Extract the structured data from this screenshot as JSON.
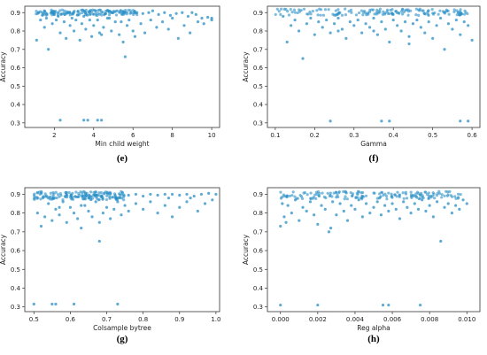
{
  "colors": {
    "point": "#2a8fc6",
    "frame": "#333333",
    "background": "#ffffff"
  },
  "chart_data": [
    {
      "type": "scatter",
      "caption": "(e)",
      "xlabel": "Min child weight",
      "ylabel": "Accuracy",
      "xlim": [
        0.5,
        10.4
      ],
      "ylim": [
        0.275,
        0.935
      ],
      "xticks": [
        2,
        4,
        6,
        8,
        10
      ],
      "yticks": [
        0.3,
        0.4,
        0.5,
        0.6,
        0.7,
        0.8,
        0.9
      ],
      "dense_band": {
        "x_start": 1.0,
        "x_end": 6.3,
        "y_low": 0.885,
        "y_high": 0.915,
        "count": 140
      },
      "points": [
        [
          1.2,
          0.9
        ],
        [
          1.5,
          0.91
        ],
        [
          2.0,
          0.89
        ],
        [
          2.7,
          0.9
        ],
        [
          3.2,
          0.905
        ],
        [
          3.6,
          0.9
        ],
        [
          4.1,
          0.91
        ],
        [
          4.6,
          0.895
        ],
        [
          5.0,
          0.9
        ],
        [
          5.5,
          0.905
        ],
        [
          5.9,
          0.9
        ],
        [
          6.2,
          0.9
        ],
        [
          6.5,
          0.895
        ],
        [
          6.8,
          0.9
        ],
        [
          7.0,
          0.91
        ],
        [
          7.3,
          0.89
        ],
        [
          7.6,
          0.9
        ],
        [
          7.9,
          0.885
        ],
        [
          8.2,
          0.895
        ],
        [
          8.5,
          0.9
        ],
        [
          8.8,
          0.88
        ],
        [
          9.2,
          0.89
        ],
        [
          9.5,
          0.87
        ],
        [
          9.8,
          0.875
        ],
        [
          10.0,
          0.86
        ],
        [
          9.0,
          0.9
        ],
        [
          1.1,
          0.75
        ],
        [
          1.3,
          0.86
        ],
        [
          1.5,
          0.82
        ],
        [
          1.6,
          0.87
        ],
        [
          1.7,
          0.7
        ],
        [
          1.9,
          0.84
        ],
        [
          2.1,
          0.86
        ],
        [
          2.3,
          0.79
        ],
        [
          2.5,
          0.85
        ],
        [
          2.6,
          0.76
        ],
        [
          2.8,
          0.83
        ],
        [
          2.9,
          0.87
        ],
        [
          3.0,
          0.8
        ],
        [
          3.1,
          0.86
        ],
        [
          3.3,
          0.75
        ],
        [
          3.4,
          0.84
        ],
        [
          3.6,
          0.81
        ],
        [
          3.8,
          0.86
        ],
        [
          3.9,
          0.77
        ],
        [
          4.0,
          0.83
        ],
        [
          4.2,
          0.86
        ],
        [
          4.3,
          0.79
        ],
        [
          4.5,
          0.82
        ],
        [
          4.7,
          0.87
        ],
        [
          4.9,
          0.8
        ],
        [
          5.1,
          0.85
        ],
        [
          5.3,
          0.78
        ],
        [
          5.5,
          0.74
        ],
        [
          5.7,
          0.83
        ],
        [
          5.8,
          0.86
        ],
        [
          6.0,
          0.8
        ],
        [
          6.1,
          0.77
        ],
        [
          6.4,
          0.84
        ],
        [
          6.6,
          0.79
        ],
        [
          6.9,
          0.86
        ],
        [
          7.2,
          0.82
        ],
        [
          7.5,
          0.85
        ],
        [
          7.8,
          0.81
        ],
        [
          8.0,
          0.87
        ],
        [
          8.3,
          0.76
        ],
        [
          8.6,
          0.83
        ],
        [
          8.9,
          0.79
        ],
        [
          9.3,
          0.85
        ],
        [
          9.6,
          0.84
        ],
        [
          10.0,
          0.87
        ],
        [
          5.4,
          0.85
        ],
        [
          5.6,
          0.66
        ],
        [
          4.4,
          0.78
        ],
        [
          2.2,
          0.88
        ],
        [
          3.5,
          0.88
        ],
        [
          4.8,
          0.87
        ],
        [
          2.3,
          0.315
        ],
        [
          3.5,
          0.315
        ],
        [
          3.7,
          0.315
        ],
        [
          4.2,
          0.315
        ],
        [
          4.4,
          0.315
        ]
      ]
    },
    {
      "type": "scatter",
      "caption": "(f)",
      "xlabel": "Gamma",
      "ylabel": "Accuracy",
      "xlim": [
        0.08,
        0.62
      ],
      "ylim": [
        0.275,
        0.935
      ],
      "xticks": [
        0.1,
        0.2,
        0.3,
        0.4,
        0.5,
        0.6
      ],
      "yticks": [
        0.3,
        0.4,
        0.5,
        0.6,
        0.7,
        0.8,
        0.9
      ],
      "dense_band": {
        "x_start": 0.1,
        "x_end": 0.6,
        "y_low": 0.885,
        "y_high": 0.92,
        "count": 150
      },
      "points": [
        [
          0.12,
          0.88
        ],
        [
          0.13,
          0.74
        ],
        [
          0.14,
          0.83
        ],
        [
          0.15,
          0.86
        ],
        [
          0.16,
          0.8
        ],
        [
          0.17,
          0.65
        ],
        [
          0.18,
          0.84
        ],
        [
          0.19,
          0.87
        ],
        [
          0.2,
          0.78
        ],
        [
          0.21,
          0.85
        ],
        [
          0.22,
          0.82
        ],
        [
          0.23,
          0.86
        ],
        [
          0.24,
          0.79
        ],
        [
          0.25,
          0.84
        ],
        [
          0.26,
          0.87
        ],
        [
          0.27,
          0.81
        ],
        [
          0.28,
          0.76
        ],
        [
          0.29,
          0.85
        ],
        [
          0.3,
          0.83
        ],
        [
          0.31,
          0.86
        ],
        [
          0.32,
          0.79
        ],
        [
          0.33,
          0.84
        ],
        [
          0.34,
          0.82
        ],
        [
          0.35,
          0.87
        ],
        [
          0.36,
          0.78
        ],
        [
          0.37,
          0.85
        ],
        [
          0.38,
          0.81
        ],
        [
          0.39,
          0.74
        ],
        [
          0.4,
          0.86
        ],
        [
          0.41,
          0.83
        ],
        [
          0.42,
          0.8
        ],
        [
          0.43,
          0.85
        ],
        [
          0.44,
          0.77
        ],
        [
          0.45,
          0.84
        ],
        [
          0.46,
          0.86
        ],
        [
          0.47,
          0.82
        ],
        [
          0.48,
          0.79
        ],
        [
          0.49,
          0.85
        ],
        [
          0.5,
          0.76
        ],
        [
          0.51,
          0.83
        ],
        [
          0.52,
          0.87
        ],
        [
          0.53,
          0.7
        ],
        [
          0.54,
          0.84
        ],
        [
          0.55,
          0.81
        ],
        [
          0.56,
          0.86
        ],
        [
          0.57,
          0.78
        ],
        [
          0.58,
          0.85
        ],
        [
          0.59,
          0.83
        ],
        [
          0.6,
          0.75
        ],
        [
          0.26,
          0.8
        ],
        [
          0.35,
          0.8
        ],
        [
          0.44,
          0.73
        ],
        [
          0.24,
          0.31
        ],
        [
          0.37,
          0.31
        ],
        [
          0.39,
          0.31
        ],
        [
          0.57,
          0.31
        ],
        [
          0.59,
          0.31
        ]
      ]
    },
    {
      "type": "scatter",
      "caption": "(g)",
      "xlabel": "Colsample bytree",
      "ylabel": "Accuracy",
      "xlim": [
        0.475,
        1.01
      ],
      "ylim": [
        0.275,
        0.935
      ],
      "xticks": [
        0.5,
        0.6,
        0.7,
        0.8,
        0.9,
        1.0
      ],
      "yticks": [
        0.3,
        0.4,
        0.5,
        0.6,
        0.7,
        0.8,
        0.9
      ],
      "dense_band": {
        "x_start": 0.5,
        "x_end": 0.75,
        "y_low": 0.87,
        "y_high": 0.915,
        "count": 170
      },
      "points": [
        [
          0.76,
          0.895
        ],
        [
          0.78,
          0.9
        ],
        [
          0.8,
          0.89
        ],
        [
          0.82,
          0.9
        ],
        [
          0.84,
          0.895
        ],
        [
          0.86,
          0.9
        ],
        [
          0.88,
          0.9
        ],
        [
          0.9,
          0.895
        ],
        [
          0.92,
          0.9
        ],
        [
          0.94,
          0.89
        ],
        [
          0.96,
          0.9
        ],
        [
          0.98,
          0.905
        ],
        [
          1.0,
          0.9
        ],
        [
          0.87,
          0.88
        ],
        [
          0.93,
          0.88
        ],
        [
          0.51,
          0.8
        ],
        [
          0.52,
          0.73
        ],
        [
          0.53,
          0.78
        ],
        [
          0.54,
          0.85
        ],
        [
          0.55,
          0.76
        ],
        [
          0.56,
          0.82
        ],
        [
          0.57,
          0.79
        ],
        [
          0.58,
          0.86
        ],
        [
          0.59,
          0.75
        ],
        [
          0.6,
          0.83
        ],
        [
          0.61,
          0.8
        ],
        [
          0.62,
          0.77
        ],
        [
          0.63,
          0.72
        ],
        [
          0.64,
          0.84
        ],
        [
          0.65,
          0.81
        ],
        [
          0.66,
          0.78
        ],
        [
          0.67,
          0.86
        ],
        [
          0.68,
          0.75
        ],
        [
          0.69,
          0.8
        ],
        [
          0.7,
          0.83
        ],
        [
          0.71,
          0.77
        ],
        [
          0.72,
          0.82
        ],
        [
          0.73,
          0.86
        ],
        [
          0.74,
          0.79
        ],
        [
          0.75,
          0.84
        ],
        [
          0.76,
          0.81
        ],
        [
          0.78,
          0.85
        ],
        [
          0.8,
          0.82
        ],
        [
          0.82,
          0.86
        ],
        [
          0.84,
          0.8
        ],
        [
          0.86,
          0.84
        ],
        [
          0.88,
          0.78
        ],
        [
          0.9,
          0.83
        ],
        [
          0.92,
          0.86
        ],
        [
          0.95,
          0.81
        ],
        [
          0.97,
          0.85
        ],
        [
          0.99,
          0.87
        ],
        [
          0.68,
          0.65
        ],
        [
          0.57,
          0.83
        ],
        [
          0.63,
          0.84
        ],
        [
          0.5,
          0.315
        ],
        [
          0.55,
          0.315
        ],
        [
          0.56,
          0.315
        ],
        [
          0.61,
          0.315
        ],
        [
          0.73,
          0.315
        ]
      ]
    },
    {
      "type": "scatter",
      "caption": "(h)",
      "xlabel": "Reg alpha",
      "ylabel": "Accuracy",
      "xlim": [
        -0.0007,
        0.0107
      ],
      "ylim": [
        0.275,
        0.935
      ],
      "xticks": [
        0.0,
        0.002,
        0.004,
        0.006,
        0.008,
        0.01
      ],
      "xticklabels": [
        "0.000",
        "0.002",
        "0.004",
        "0.006",
        "0.008",
        "0.010"
      ],
      "yticks": [
        0.3,
        0.4,
        0.5,
        0.6,
        0.7,
        0.8,
        0.9
      ],
      "dense_band": {
        "x_start": 0.0,
        "x_end": 0.0098,
        "y_low": 0.875,
        "y_high": 0.915,
        "count": 160
      },
      "points": [
        [
          0.0001,
          0.85
        ],
        [
          0.0002,
          0.78
        ],
        [
          0.0004,
          0.84
        ],
        [
          0.0006,
          0.8
        ],
        [
          0.0008,
          0.87
        ],
        [
          0.001,
          0.76
        ],
        [
          0.0012,
          0.83
        ],
        [
          0.0014,
          0.81
        ],
        [
          0.0016,
          0.86
        ],
        [
          0.0018,
          0.79
        ],
        [
          0.002,
          0.74
        ],
        [
          0.0022,
          0.84
        ],
        [
          0.0024,
          0.82
        ],
        [
          0.0026,
          0.7
        ],
        [
          0.0028,
          0.86
        ],
        [
          0.003,
          0.79
        ],
        [
          0.0032,
          0.85
        ],
        [
          0.0034,
          0.81
        ],
        [
          0.0036,
          0.76
        ],
        [
          0.0038,
          0.84
        ],
        [
          0.004,
          0.82
        ],
        [
          0.0042,
          0.87
        ],
        [
          0.0044,
          0.78
        ],
        [
          0.0046,
          0.85
        ],
        [
          0.0048,
          0.8
        ],
        [
          0.005,
          0.83
        ],
        [
          0.0052,
          0.86
        ],
        [
          0.0054,
          0.79
        ],
        [
          0.0056,
          0.84
        ],
        [
          0.0058,
          0.81
        ],
        [
          0.006,
          0.85
        ],
        [
          0.0062,
          0.82
        ],
        [
          0.0064,
          0.77
        ],
        [
          0.0066,
          0.86
        ],
        [
          0.0068,
          0.83
        ],
        [
          0.007,
          0.8
        ],
        [
          0.0072,
          0.85
        ],
        [
          0.0074,
          0.82
        ],
        [
          0.0076,
          0.87
        ],
        [
          0.0078,
          0.81
        ],
        [
          0.008,
          0.84
        ],
        [
          0.0082,
          0.78
        ],
        [
          0.0084,
          0.86
        ],
        [
          0.0086,
          0.65
        ],
        [
          0.0088,
          0.83
        ],
        [
          0.009,
          0.85
        ],
        [
          0.0092,
          0.8
        ],
        [
          0.0094,
          0.84
        ],
        [
          0.0096,
          0.82
        ],
        [
          0.0098,
          0.87
        ],
        [
          0.01,
          0.85
        ],
        [
          0.0,
          0.73
        ],
        [
          0.0003,
          0.75
        ],
        [
          0.0027,
          0.72
        ],
        [
          0.0,
          0.31
        ],
        [
          0.002,
          0.31
        ],
        [
          0.0055,
          0.31
        ],
        [
          0.0058,
          0.31
        ],
        [
          0.0075,
          0.31
        ]
      ]
    }
  ]
}
